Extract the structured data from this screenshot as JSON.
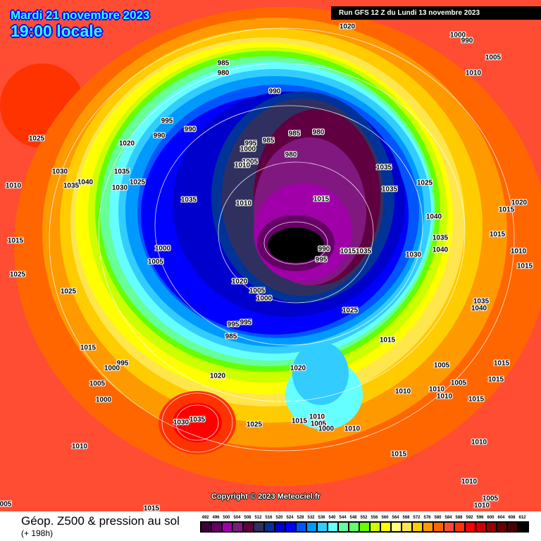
{
  "header": {
    "date": "Mardi 21 novembre 2023",
    "time": "19:00",
    "time_suffix": "locale",
    "run": "Run GFS 12 Z du Lundi 13 novembre 2023"
  },
  "map": {
    "copyright": "Copyright © 2023 Meteociel.fr",
    "isobar_labels": [
      "1020",
      "1000",
      "990",
      "1005",
      "1010",
      "985",
      "980",
      "990",
      "980",
      "985",
      "985",
      "995",
      "990",
      "990",
      "1020",
      "1025",
      "995",
      "1000",
      "980",
      "1005",
      "1010",
      "1030",
      "1035",
      "1040",
      "1035",
      "1025",
      "1030",
      "1010",
      "1035",
      "1035",
      "1025",
      "1035",
      "1010",
      "1015",
      "1020",
      "1015",
      "1040",
      "1035",
      "1040",
      "1030",
      "1015",
      "1015",
      "1000",
      "990",
      "995",
      "1015",
      "1035",
      "1010",
      "1005",
      "1015",
      "1020",
      "1005",
      "1000",
      "1025",
      "1025",
      "1025",
      "1035",
      "1040",
      "995",
      "995",
      "985",
      "1015",
      "1015",
      "995",
      "1000",
      "1020",
      "1005",
      "1015",
      "1005",
      "1020",
      "1005",
      "1015",
      "1010",
      "1010",
      "1010",
      "1000",
      "1015",
      "1030",
      "1035",
      "1025",
      "1015",
      "1010",
      "1005",
      "1000",
      "1010",
      "1010",
      "1015",
      "1010",
      "1010",
      "1005",
      "1010",
      "1015",
      "005"
    ]
  },
  "footer": {
    "title": "Géop. Z500 & pression au sol",
    "subtitle": "(+ 198h)"
  },
  "legend": {
    "values": [
      "492",
      "496",
      "500",
      "504",
      "508",
      "512",
      "516",
      "520",
      "524",
      "528",
      "532",
      "536",
      "540",
      "544",
      "548",
      "552",
      "556",
      "560",
      "564",
      "568",
      "572",
      "576",
      "580",
      "584",
      "588",
      "592",
      "596",
      "600",
      "604",
      "608",
      "612"
    ],
    "colors": [
      "#3c0040",
      "#660066",
      "#a000a8",
      "#801880",
      "#600040",
      "#303060",
      "#003399",
      "#0000cc",
      "#0000ff",
      "#0055ff",
      "#0099ff",
      "#33ccff",
      "#66ffff",
      "#66ff99",
      "#66ff66",
      "#66ff00",
      "#ccff00",
      "#ffff00",
      "#ffff80",
      "#ffe64d",
      "#ffcc00",
      "#ff9900",
      "#ff6600",
      "#ff4d33",
      "#ff3300",
      "#ff0000",
      "#cc0000",
      "#990000",
      "#660000",
      "#4d0000",
      "#000000"
    ]
  }
}
